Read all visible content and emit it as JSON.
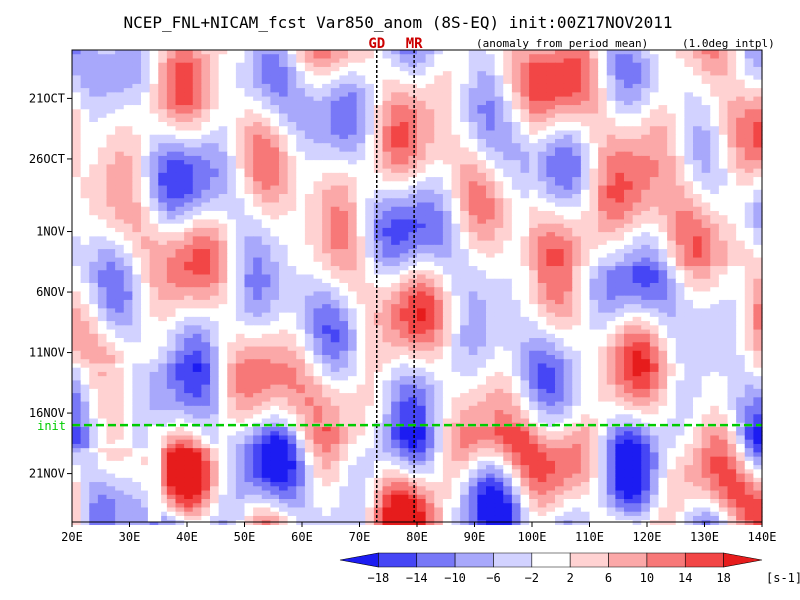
{
  "chart_data": {
    "type": "heatmap",
    "title": "NCEP_FNL+NICAM_fcst Var850_anom (8S-EQ) init:00Z17NOV2011",
    "subtitle_left": "(anomaly from period mean)",
    "subtitle_right": "(1.0deg intpl)",
    "x_range": [
      20,
      140
    ],
    "x_ticks": [
      20,
      30,
      40,
      50,
      60,
      70,
      80,
      90,
      100,
      110,
      120,
      130,
      140
    ],
    "x_tick_labels": [
      "20E",
      "30E",
      "40E",
      "50E",
      "60E",
      "70E",
      "80E",
      "90E",
      "100E",
      "110E",
      "120E",
      "130E",
      "140E"
    ],
    "y_range_days": [
      0,
      39
    ],
    "y_ticks": [
      {
        "day": 4,
        "label": "21OCT"
      },
      {
        "day": 9,
        "label": "26OCT"
      },
      {
        "day": 15,
        "label": "1NOV"
      },
      {
        "day": 20,
        "label": "6NOV"
      },
      {
        "day": 25,
        "label": "11NOV"
      },
      {
        "day": 30,
        "label": "16NOV"
      },
      {
        "day": 35,
        "label": "21NOV"
      }
    ],
    "init_line": {
      "day": 31,
      "label": "init",
      "color": "#00cc00"
    },
    "markers": [
      {
        "label": "GD",
        "lon": 73.0
      },
      {
        "label": "MR",
        "lon": 79.5
      }
    ],
    "marker_color": "#cc0000",
    "missing_band_lon": [
      33.2,
      35.5
    ],
    "colorbar": {
      "levels": [
        -18,
        -14,
        -10,
        -6,
        -2,
        2,
        6,
        10,
        14,
        18
      ],
      "level_labels": [
        "−18",
        "−14",
        "−10",
        "−6",
        "−2",
        "2",
        "6",
        "10",
        "14",
        "18"
      ],
      "colors": [
        "#1c1cf2",
        "#4646f5",
        "#7878f7",
        "#a8a8fb",
        "#d2d2ff",
        "#ffffff",
        "#ffd2d2",
        "#fba8a8",
        "#f77878",
        "#f24646",
        "#e61c1c"
      ],
      "units": "[s-1]"
    }
  }
}
